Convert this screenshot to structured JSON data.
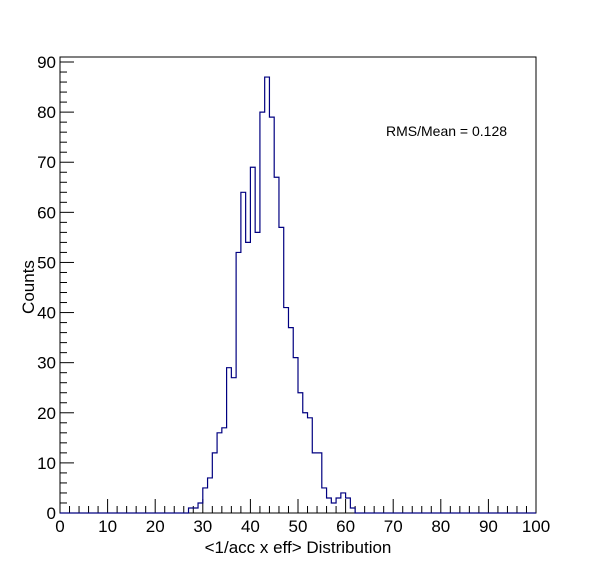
{
  "chart_data": {
    "type": "histogram",
    "title": "",
    "xlabel": "<1/acc x eff> Distribution",
    "ylabel": "Counts",
    "xlim": [
      0,
      100
    ],
    "ylim": [
      0,
      91
    ],
    "bin_width": 1,
    "x_ticks": [
      0,
      10,
      20,
      30,
      40,
      50,
      60,
      70,
      80,
      90,
      100
    ],
    "y_ticks": [
      0,
      10,
      20,
      30,
      40,
      50,
      60,
      70,
      80,
      90
    ],
    "line_color": "#000080",
    "annotation": "RMS/Mean = 0.128",
    "bins": [
      {
        "x": 27,
        "y": 1
      },
      {
        "x": 28,
        "y": 1
      },
      {
        "x": 29,
        "y": 2
      },
      {
        "x": 30,
        "y": 5
      },
      {
        "x": 31,
        "y": 7
      },
      {
        "x": 32,
        "y": 12
      },
      {
        "x": 33,
        "y": 16
      },
      {
        "x": 34,
        "y": 17
      },
      {
        "x": 35,
        "y": 29
      },
      {
        "x": 36,
        "y": 27
      },
      {
        "x": 37,
        "y": 52
      },
      {
        "x": 38,
        "y": 64
      },
      {
        "x": 39,
        "y": 54
      },
      {
        "x": 40,
        "y": 69
      },
      {
        "x": 41,
        "y": 56
      },
      {
        "x": 42,
        "y": 80
      },
      {
        "x": 43,
        "y": 87
      },
      {
        "x": 44,
        "y": 79
      },
      {
        "x": 45,
        "y": 67
      },
      {
        "x": 46,
        "y": 57
      },
      {
        "x": 47,
        "y": 41
      },
      {
        "x": 48,
        "y": 37
      },
      {
        "x": 49,
        "y": 31
      },
      {
        "x": 50,
        "y": 24
      },
      {
        "x": 51,
        "y": 20
      },
      {
        "x": 52,
        "y": 19
      },
      {
        "x": 53,
        "y": 12
      },
      {
        "x": 54,
        "y": 12
      },
      {
        "x": 55,
        "y": 5
      },
      {
        "x": 56,
        "y": 3
      },
      {
        "x": 57,
        "y": 2
      },
      {
        "x": 58,
        "y": 3
      },
      {
        "x": 59,
        "y": 4
      },
      {
        "x": 60,
        "y": 3
      },
      {
        "x": 61,
        "y": 1
      }
    ]
  }
}
